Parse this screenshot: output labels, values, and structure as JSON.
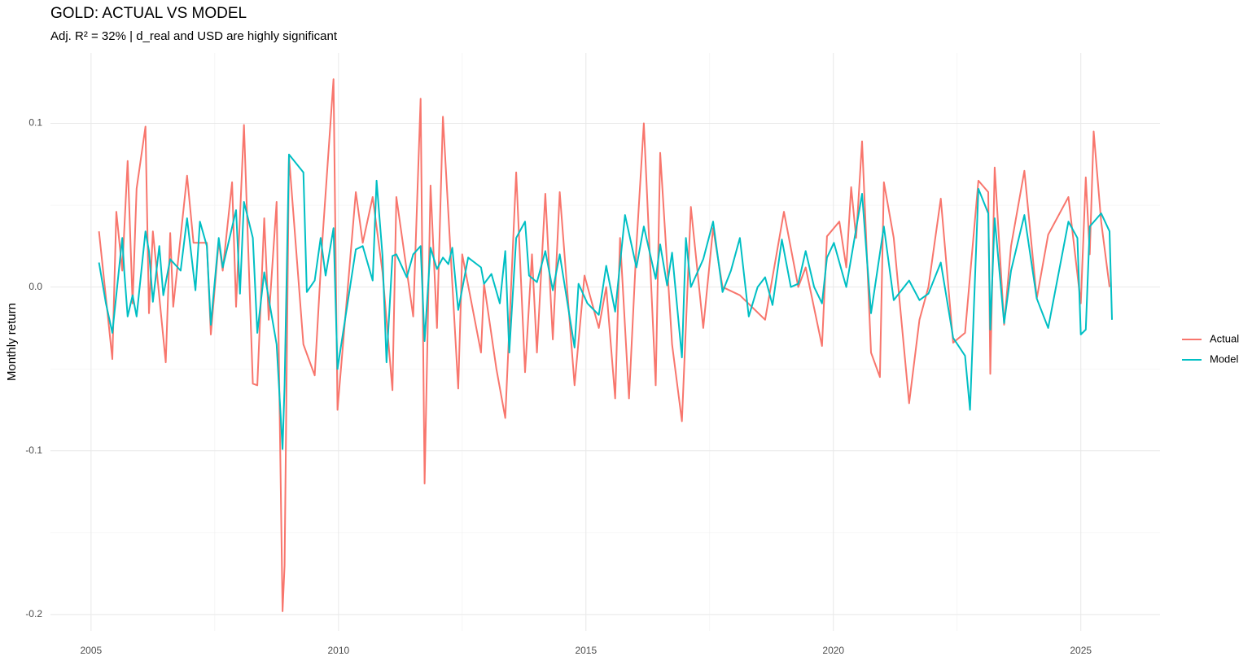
{
  "chart_data": {
    "type": "line",
    "title": "GOLD: ACTUAL VS MODEL",
    "subtitle": "Adj. R² = 32% | d_real and USD are highly significant",
    "y_label": "Monthly return",
    "xlim": [
      2004.18,
      2026.6
    ],
    "ylim": [
      -0.21,
      0.143
    ],
    "xticks": [
      2005,
      2010,
      2015,
      2020,
      2025
    ],
    "yticks": [
      -0.2,
      -0.1,
      {
        "value": 0,
        "label": "0.0"
      },
      0.1
    ],
    "xminor": [
      2007.5,
      2012.5,
      2017.5,
      2022.5
    ],
    "yminor": [
      -0.15,
      -0.05,
      0.05
    ],
    "grid": true,
    "legend": "right",
    "series": [
      {
        "name": "Actual",
        "color": "#F8766D",
        "x": [
          2005.16,
          2005.43,
          2005.51,
          2005.63,
          2005.74,
          2005.84,
          2005.92,
          2006.1,
          2006.17,
          2006.25,
          2006.51,
          2006.6,
          2006.66,
          2006.94,
          2007.07,
          2007.34,
          2007.42,
          2007.58,
          2007.66,
          2007.85,
          2007.93,
          2008.09,
          2008.27,
          2008.36,
          2008.5,
          2008.59,
          2008.75,
          2008.87,
          2008.91,
          2009.0,
          2009.29,
          2009.52,
          2009.67,
          2009.9,
          2009.98,
          2010.35,
          2010.49,
          2010.69,
          2010.89,
          2011.09,
          2011.17,
          2011.51,
          2011.66,
          2011.74,
          2011.86,
          2011.99,
          2012.11,
          2012.42,
          2012.5,
          2012.88,
          2012.94,
          2013.19,
          2013.37,
          2013.59,
          2013.77,
          2013.91,
          2014.01,
          2014.18,
          2014.33,
          2014.47,
          2014.77,
          2014.97,
          2015.26,
          2015.41,
          2015.59,
          2015.69,
          2015.87,
          2016.02,
          2016.17,
          2016.41,
          2016.5,
          2016.74,
          2016.94,
          2017.12,
          2017.37,
          2017.57,
          2017.76,
          2018.11,
          2018.62,
          2019.0,
          2019.29,
          2019.44,
          2019.77,
          2019.87,
          2020.12,
          2020.26,
          2020.36,
          2020.46,
          2020.58,
          2020.76,
          2020.94,
          2021.02,
          2021.22,
          2021.53,
          2021.74,
          2021.92,
          2022.17,
          2022.42,
          2022.66,
          2022.93,
          2023.13,
          2023.17,
          2023.26,
          2023.45,
          2023.59,
          2023.86,
          2024.11,
          2024.34,
          2024.75,
          2025.0,
          2025.1,
          2025.18,
          2025.26,
          2025.41,
          2025.58
        ],
        "values": [
          0.034,
          -0.044,
          0.046,
          0.01,
          0.077,
          -0.01,
          0.06,
          0.098,
          -0.016,
          0.034,
          -0.046,
          0.033,
          -0.012,
          0.068,
          0.027,
          0.027,
          -0.029,
          0.028,
          0.01,
          0.064,
          -0.012,
          0.099,
          -0.059,
          -0.06,
          0.042,
          -0.02,
          0.052,
          -0.198,
          -0.17,
          0.08,
          -0.035,
          -0.054,
          0.027,
          0.127,
          -0.075,
          0.058,
          0.027,
          0.055,
          0.009,
          -0.063,
          0.055,
          -0.018,
          0.115,
          -0.12,
          0.062,
          -0.025,
          0.104,
          -0.062,
          0.02,
          -0.04,
          0.002,
          -0.05,
          -0.08,
          0.07,
          -0.052,
          0.02,
          -0.04,
          0.057,
          -0.032,
          0.058,
          -0.06,
          0.007,
          -0.025,
          0,
          -0.068,
          0.03,
          -0.068,
          0.025,
          0.1,
          -0.06,
          0.082,
          -0.035,
          -0.082,
          0.049,
          -0.025,
          0.036,
          0,
          -0.005,
          -0.02,
          0.046,
          0,
          0.012,
          -0.036,
          0.031,
          0.04,
          0.012,
          0.061,
          0.03,
          0.089,
          -0.04,
          -0.055,
          0.064,
          0.03,
          -0.071,
          -0.02,
          0,
          0.054,
          -0.034,
          -0.028,
          0.065,
          0.058,
          -0.053,
          0.073,
          -0.023,
          0.025,
          0.071,
          -0.007,
          0.032,
          0.055,
          -0.01,
          0.067,
          0.02,
          0.095,
          0.04,
          0
        ]
      },
      {
        "name": "Model",
        "color": "#00BFC4",
        "x": [
          2005.16,
          2005.3,
          2005.43,
          2005.63,
          2005.67,
          2005.74,
          2005.84,
          2005.92,
          2006.1,
          2006.17,
          2006.25,
          2006.38,
          2006.46,
          2006.6,
          2006.81,
          2006.94,
          2007.11,
          2007.2,
          2007.34,
          2007.42,
          2007.58,
          2007.66,
          2007.93,
          2008.01,
          2008.09,
          2008.27,
          2008.36,
          2008.5,
          2008.75,
          2008.87,
          2008.91,
          2009.0,
          2009.29,
          2009.36,
          2009.52,
          2009.64,
          2009.74,
          2009.9,
          2009.98,
          2010.35,
          2010.49,
          2010.69,
          2010.77,
          2010.89,
          2010.97,
          2011.09,
          2011.17,
          2011.38,
          2011.51,
          2011.66,
          2011.74,
          2011.86,
          2011.99,
          2012.11,
          2012.22,
          2012.3,
          2012.42,
          2012.62,
          2012.88,
          2012.94,
          2013.09,
          2013.26,
          2013.37,
          2013.45,
          2013.59,
          2013.77,
          2013.85,
          2014.01,
          2014.18,
          2014.33,
          2014.47,
          2014.77,
          2014.85,
          2015.03,
          2015.26,
          2015.41,
          2015.59,
          2015.79,
          2016.02,
          2016.17,
          2016.41,
          2016.5,
          2016.64,
          2016.74,
          2016.94,
          2017.02,
          2017.12,
          2017.37,
          2017.57,
          2017.76,
          2017.93,
          2018.11,
          2018.29,
          2018.47,
          2018.62,
          2018.77,
          2018.96,
          2019.14,
          2019.29,
          2019.44,
          2019.61,
          2019.77,
          2019.87,
          2020.01,
          2020.26,
          2020.58,
          2020.76,
          2021.02,
          2021.22,
          2021.53,
          2021.74,
          2021.92,
          2022.17,
          2022.42,
          2022.66,
          2022.76,
          2022.93,
          2023.13,
          2023.17,
          2023.26,
          2023.45,
          2023.59,
          2023.86,
          2024.11,
          2024.34,
          2024.75,
          2024.93,
          2025.0,
          2025.1,
          2025.18,
          2025.41,
          2025.58,
          2025.63
        ],
        "values": [
          0.015,
          -0.01,
          -0.028,
          0.03,
          0.01,
          -0.018,
          -0.005,
          -0.018,
          0.034,
          0.022,
          -0.009,
          0.025,
          -0.005,
          0.017,
          0.01,
          0.042,
          -0.002,
          0.04,
          0.025,
          -0.023,
          0.03,
          0.012,
          0.047,
          -0.004,
          0.052,
          0.03,
          -0.028,
          0.009,
          -0.035,
          -0.099,
          -0.06,
          0.081,
          0.07,
          -0.003,
          0.004,
          0.03,
          0.007,
          0.036,
          -0.05,
          0.023,
          0.025,
          0.004,
          0.065,
          0.019,
          -0.046,
          0.019,
          0.02,
          0.006,
          0.02,
          0.025,
          -0.033,
          0.024,
          0.011,
          0.018,
          0.014,
          0.024,
          -0.014,
          0.018,
          0.012,
          0.002,
          0.008,
          -0.01,
          0.022,
          -0.04,
          0.03,
          0.04,
          0.007,
          0.003,
          0.022,
          -0.002,
          0.02,
          -0.037,
          0.002,
          -0.01,
          -0.017,
          0.013,
          -0.015,
          0.044,
          0.012,
          0.037,
          0.005,
          0.026,
          0.001,
          0.021,
          -0.043,
          0.03,
          0,
          0.017,
          0.04,
          -0.003,
          0.01,
          0.03,
          -0.018,
          0,
          0.006,
          -0.011,
          0.029,
          0,
          0.002,
          0.022,
          0,
          -0.01,
          0.018,
          0.027,
          0,
          0.057,
          -0.016,
          0.037,
          -0.008,
          0.004,
          -0.008,
          -0.004,
          0.015,
          -0.031,
          -0.042,
          -0.075,
          0.06,
          0.045,
          -0.026,
          0.042,
          -0.022,
          0.01,
          0.044,
          -0.007,
          -0.025,
          0.04,
          0.03,
          -0.029,
          -0.026,
          0.037,
          0.045,
          0.034,
          -0.02
        ]
      }
    ]
  }
}
